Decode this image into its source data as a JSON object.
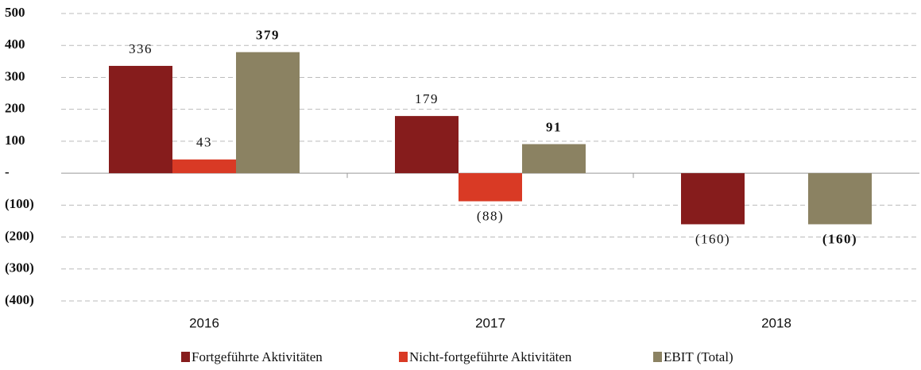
{
  "chart_data": {
    "type": "bar",
    "categories": [
      "2016",
      "2017",
      "2018"
    ],
    "series": [
      {
        "name": "Fortgeführte Aktivitäten",
        "color": "#861c1c",
        "values": [
          336,
          179,
          -160
        ],
        "value_labels": [
          "336",
          "179",
          "(160)"
        ],
        "bold": false
      },
      {
        "name": "Nicht-fortgeführte Aktivitäten",
        "color": "#d93a25",
        "values": [
          43,
          -88,
          null
        ],
        "value_labels": [
          "43",
          "(88)",
          null
        ],
        "bold": false
      },
      {
        "name": "EBIT (Total)",
        "color": "#8b8262",
        "values": [
          379,
          91,
          -160
        ],
        "value_labels": [
          "379",
          "91",
          "(160)"
        ],
        "bold": true
      }
    ],
    "ylim": [
      -400,
      500
    ],
    "yticks": [
      {
        "value": -400,
        "label": "(400)"
      },
      {
        "value": -300,
        "label": "(300)"
      },
      {
        "value": -200,
        "label": "(200)"
      },
      {
        "value": -100,
        "label": "(100)"
      },
      {
        "value": 0,
        "label": "-"
      },
      100,
      200,
      300,
      400,
      500
    ],
    "grid": true,
    "legend": "bottom"
  }
}
